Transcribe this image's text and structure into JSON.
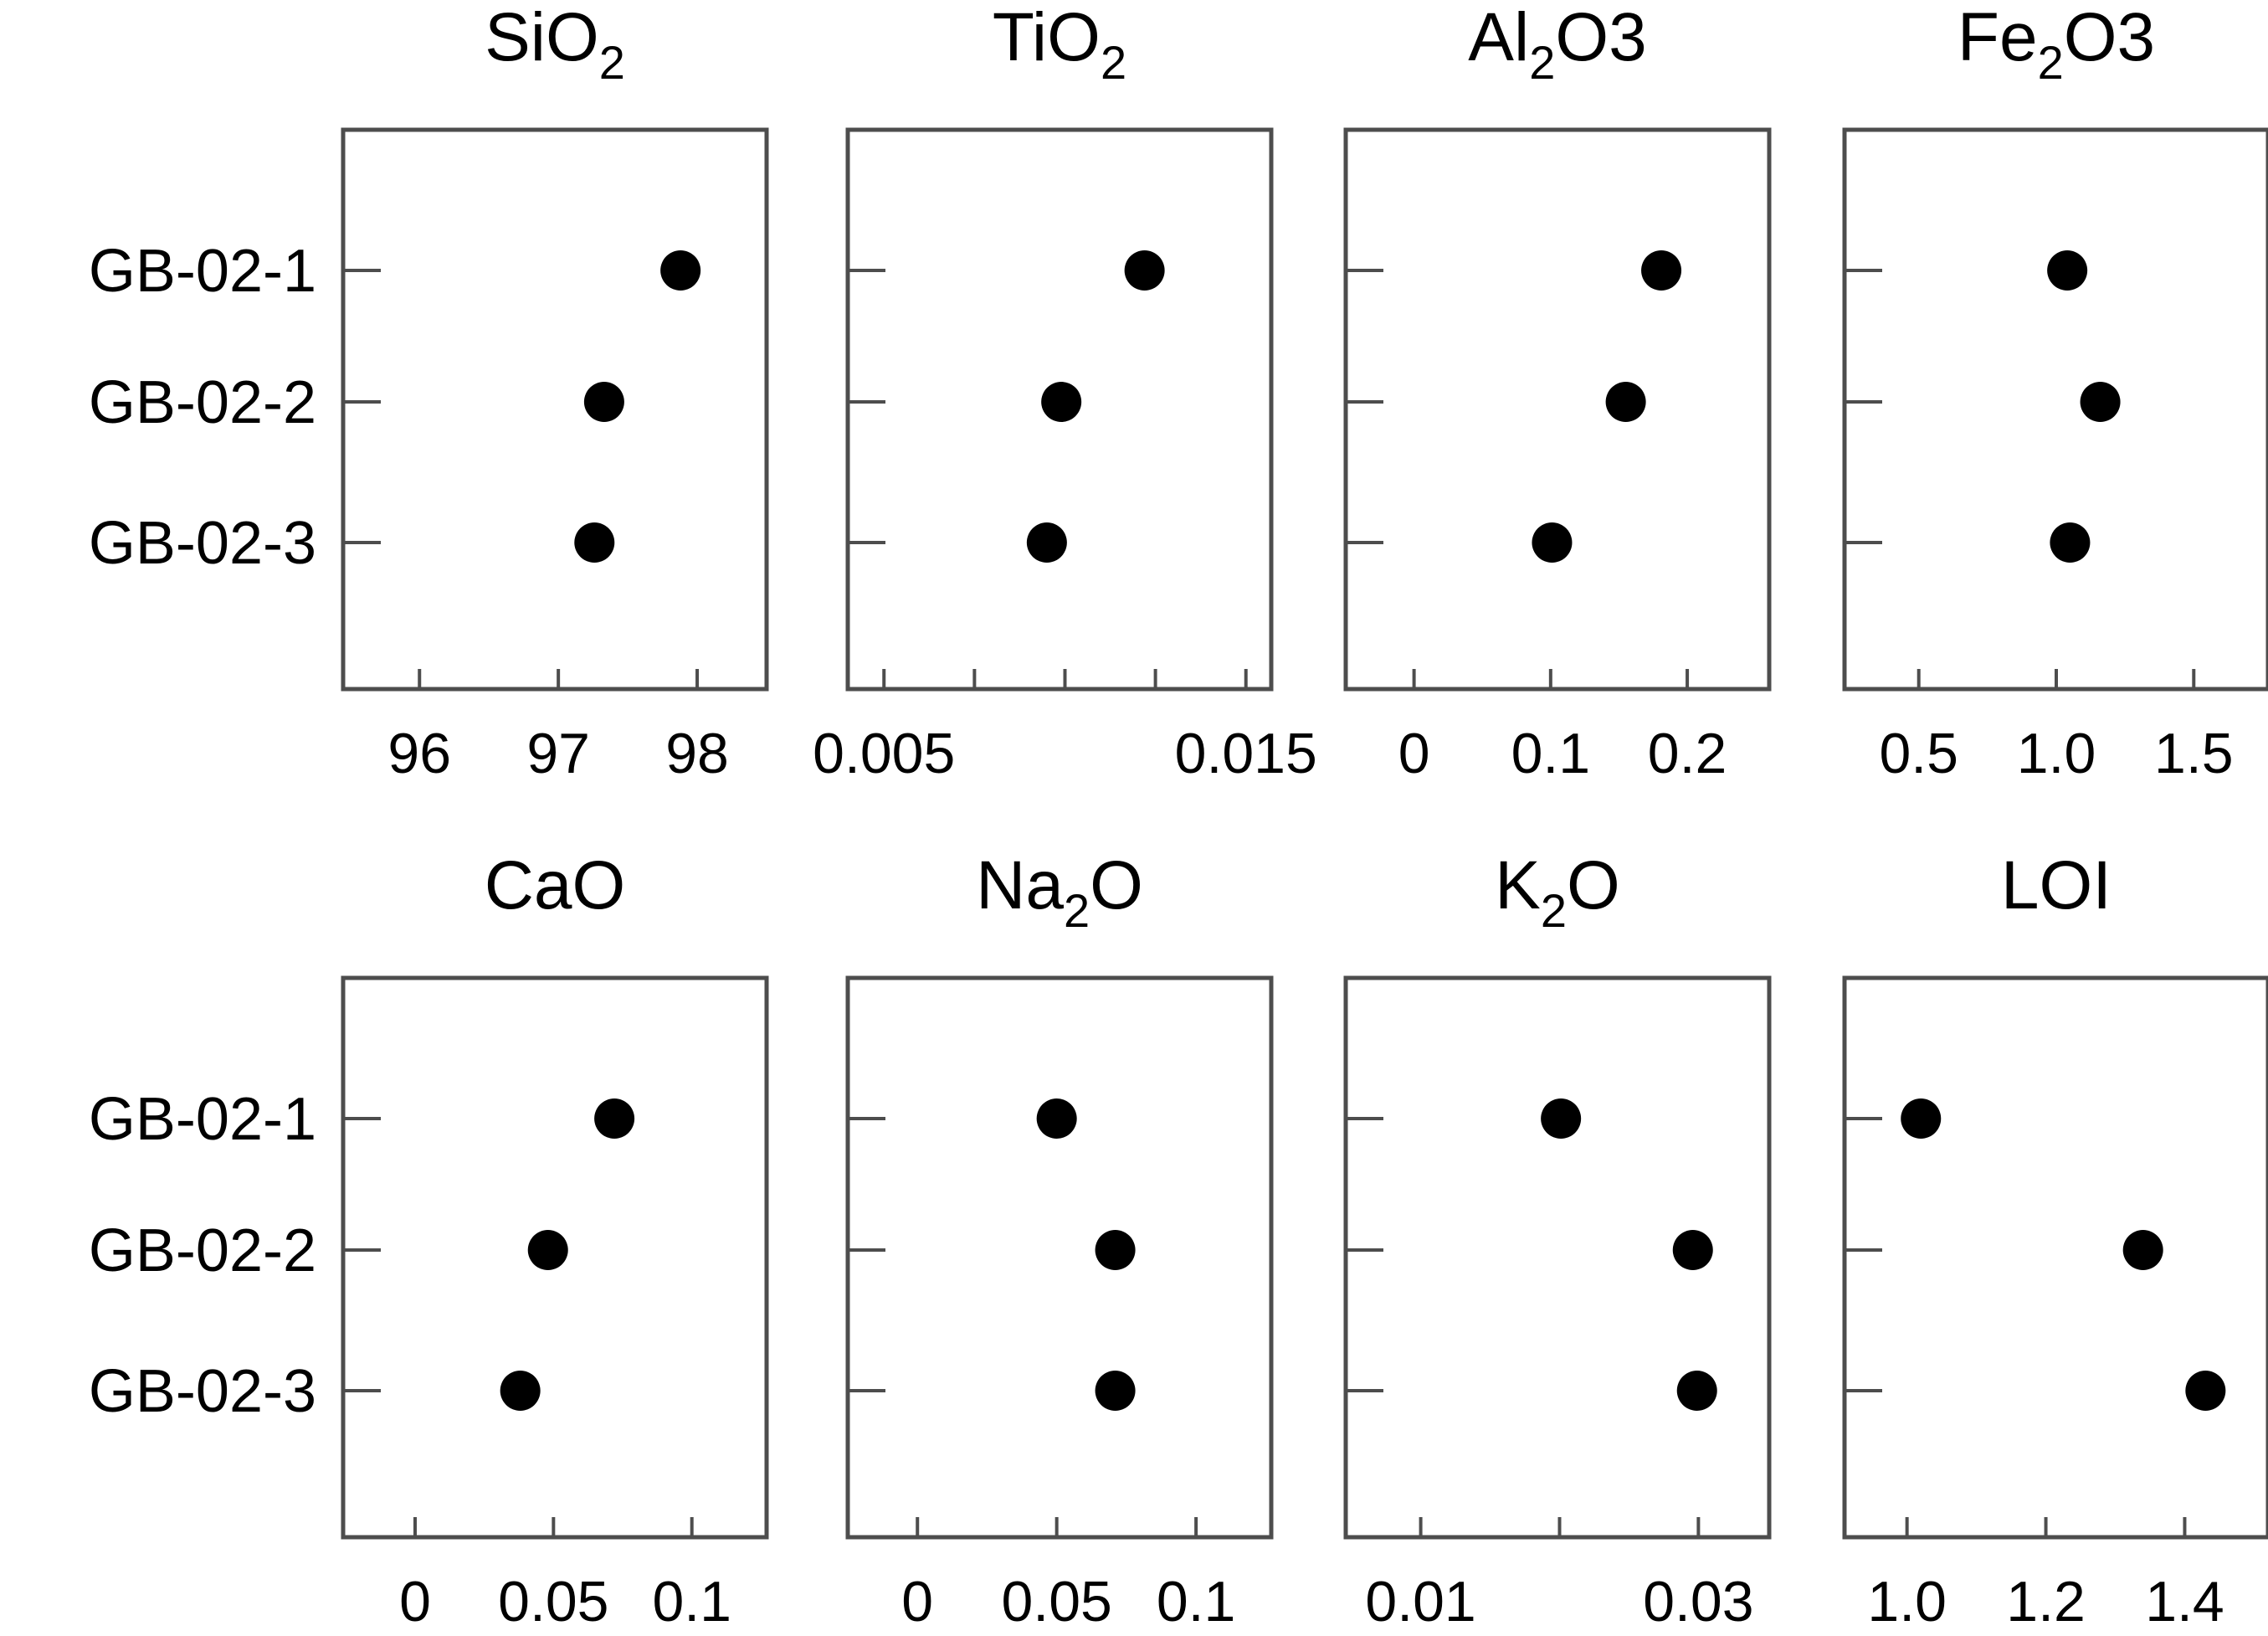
{
  "samples": [
    "GB-02-1",
    "GB-02-2",
    "GB-02-3"
  ],
  "colors": {
    "frame": "#4d4d4d",
    "marker": "#000000",
    "text": "#000000"
  },
  "chart_data": [
    {
      "type": "scatter",
      "title": "SiO",
      "title_sub": "2",
      "title_tail": "",
      "categories": [
        "GB-02-1",
        "GB-02-2",
        "GB-02-3"
      ],
      "values": [
        97.88,
        97.33,
        97.26
      ],
      "xlim": [
        95.45,
        98.5
      ],
      "xticks": [
        96,
        97,
        98
      ],
      "xtick_labels": [
        "96",
        "97",
        "98"
      ]
    },
    {
      "type": "scatter",
      "title": "TiO",
      "title_sub": "2",
      "title_tail": "",
      "categories": [
        "GB-02-1",
        "GB-02-2",
        "GB-02-3"
      ],
      "values": [
        0.0122,
        0.0099,
        0.0095
      ],
      "xlim": [
        0.004,
        0.0157
      ],
      "xticks": [
        0.005,
        0.0075,
        0.01,
        0.0125,
        0.015
      ],
      "xtick_labels": [
        "0.005",
        "",
        "",
        "",
        "0.015"
      ]
    },
    {
      "type": "scatter",
      "title": "Al",
      "title_sub": "2",
      "title_tail": "O3",
      "categories": [
        "GB-02-1",
        "GB-02-2",
        "GB-02-3"
      ],
      "values": [
        0.181,
        0.155,
        0.101
      ],
      "xlim": [
        -0.05,
        0.26
      ],
      "xticks": [
        0,
        0.1,
        0.2
      ],
      "xtick_labels": [
        "0",
        "0.1",
        "0.2"
      ]
    },
    {
      "type": "scatter",
      "title": "Fe",
      "title_sub": "2",
      "title_tail": "O3",
      "categories": [
        "GB-02-1",
        "GB-02-2",
        "GB-02-3"
      ],
      "values": [
        1.04,
        1.16,
        1.05
      ],
      "xlim": [
        0.23,
        1.77
      ],
      "xticks": [
        0.5,
        1.0,
        1.5
      ],
      "xtick_labels": [
        "0.5",
        "1.0",
        "1.5"
      ]
    },
    {
      "type": "scatter",
      "title": "CaO",
      "title_sub": "",
      "title_tail": "",
      "categories": [
        "GB-02-1",
        "GB-02-2",
        "GB-02-3"
      ],
      "values": [
        0.072,
        0.048,
        0.038
      ],
      "xlim": [
        -0.026,
        0.127
      ],
      "xticks": [
        0,
        0.05,
        0.1
      ],
      "xtick_labels": [
        "0",
        "0.05",
        "0.1"
      ]
    },
    {
      "type": "scatter",
      "title": "Na",
      "title_sub": "2",
      "title_tail": "O",
      "categories": [
        "GB-02-1",
        "GB-02-2",
        "GB-02-3"
      ],
      "values": [
        0.05,
        0.071,
        0.071
      ],
      "xlim": [
        -0.025,
        0.127
      ],
      "xticks": [
        0,
        0.05,
        0.1
      ],
      "xtick_labels": [
        "0",
        "0.05",
        "0.1"
      ]
    },
    {
      "type": "scatter",
      "title": "K",
      "title_sub": "2",
      "title_tail": "O",
      "categories": [
        "GB-02-1",
        "GB-02-2",
        "GB-02-3"
      ],
      "values": [
        0.0201,
        0.0296,
        0.0299
      ],
      "xlim": [
        0.0046,
        0.0351
      ],
      "xticks": [
        0.01,
        0.02,
        0.03
      ],
      "xtick_labels": [
        "0.01",
        "",
        "0.03"
      ]
    },
    {
      "type": "scatter",
      "title": "LOI",
      "title_sub": "",
      "title_tail": "",
      "categories": [
        "GB-02-1",
        "GB-02-2",
        "GB-02-3"
      ],
      "values": [
        1.02,
        1.34,
        1.43
      ],
      "xlim": [
        0.91,
        1.52
      ],
      "xticks": [
        1.0,
        1.2,
        1.4
      ],
      "xtick_labels": [
        "1.0",
        "1.2",
        "1.4"
      ]
    }
  ]
}
